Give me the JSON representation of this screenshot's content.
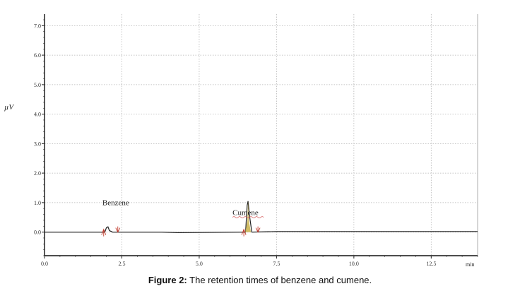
{
  "chart_data": {
    "type": "line",
    "xlabel": "min",
    "ylabel": "µV",
    "xlim": [
      0,
      14
    ],
    "ylim": [
      -0.8,
      7.2
    ],
    "x_ticks": [
      "0.0",
      "2.5",
      "5.0",
      "7.5",
      "10.0",
      "12.5"
    ],
    "y_ticks": [
      "0.0",
      "1.0",
      "2.0",
      "3.0",
      "4.0",
      "5.0",
      "6.0",
      "7.0"
    ],
    "grid": true,
    "baseline": 0.0,
    "peaks": [
      {
        "name": "Benzene",
        "retention_min": 2.05,
        "height": 0.18,
        "label": "Benzene"
      },
      {
        "name": "Cumene",
        "retention_min": 6.58,
        "height": 1.05,
        "label": "Cumene"
      }
    ],
    "series": [
      {
        "x": [
          0,
          1.5,
          1.95,
          2.0,
          2.05,
          2.1,
          2.2,
          3.8,
          4.3,
          6.3,
          6.5,
          6.55,
          6.58,
          6.62,
          6.7,
          7.5,
          14.0
        ],
        "y": [
          0,
          0,
          0,
          0.15,
          0.18,
          0.05,
          0,
          0,
          -0.02,
          0,
          0,
          0.9,
          1.05,
          0.6,
          0,
          0.02,
          0.02
        ]
      }
    ]
  },
  "caption": {
    "label": "Figure 2:",
    "text": " The retention times of benzene and cumene."
  }
}
